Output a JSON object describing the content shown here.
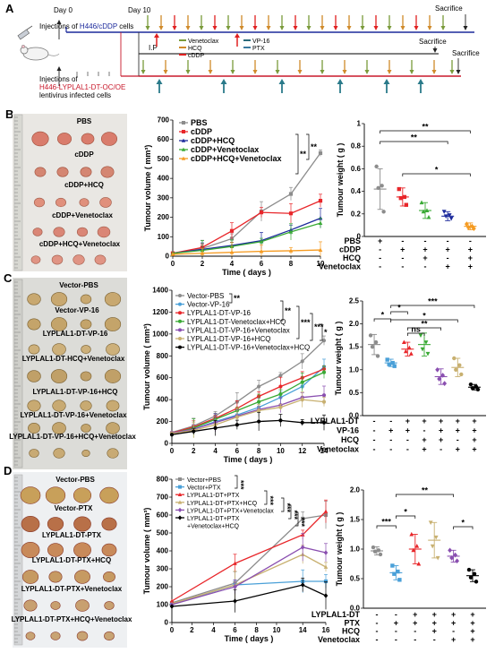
{
  "panels": {
    "A": "A",
    "B": "B",
    "C": "C",
    "D": "D"
  },
  "schematic": {
    "day0": "Day 0",
    "day10": "Day 10",
    "injection1_prefix": "Injections of ",
    "injection1_cells": "H446/cDDP",
    "injection1_suffix": " cells",
    "injection2_l1": "Injections of",
    "injection2_l2": "H446-LYPLAL1-DT-OC/OE",
    "injection2_l3": "lentivirus infected cells",
    "ip": "I.P",
    "sacrifice": "Sacrifice",
    "legend": [
      {
        "label": "Venetoclax",
        "color": "#7a9a3a"
      },
      {
        "label": "HCQ",
        "color": "#d08a2a"
      },
      {
        "label": "cDDP",
        "color": "#e02020"
      },
      {
        "label": "VP-16",
        "color": "#2a6a7a"
      },
      {
        "label": "PTX",
        "color": "#3a7aa0"
      }
    ]
  },
  "photos": {
    "B": {
      "labels": [
        "PBS",
        "cDDP",
        "cDDP+HCQ",
        "cDDP+Venetoclax",
        "cDDP+HCQ+Venetoclax"
      ]
    },
    "C": {
      "labels": [
        "Vector-PBS",
        "Vector-VP-16",
        "LYPLAL1-DT-VP-16",
        "LYPLAL1-DT-HCQ+Venetoclax",
        "LYPLAL1-DT-VP-16+HCQ",
        "LYPLAL1-DT-VP-16+Venetoclax",
        "LYPLAL1-DT-VP-16+HCQ+Venetoclax"
      ]
    },
    "D": {
      "labels": [
        "Vector-PBS",
        "Vector-PTX",
        "LYPLAL1-DT-PTX",
        "LYPLAL1-DT-PTX+HCQ",
        "LYPLAL1-DT-PTX+Venetoclax",
        "LYPLAL1-DT-PTX+HCQ+Venetoclax"
      ]
    }
  },
  "chart_data": [
    {
      "id": "B-volume",
      "type": "line",
      "xlabel": "Time ( days )",
      "ylabel": "Tumour volume ( mm³)",
      "xlim": [
        0,
        10
      ],
      "ylim": [
        0,
        700
      ],
      "xticks": [
        0,
        2,
        4,
        6,
        8,
        10
      ],
      "yticks": [
        0,
        100,
        200,
        300,
        400,
        500,
        600,
        700
      ],
      "legend_position": "top-left",
      "series": [
        {
          "name": "PBS",
          "color": "#8c8c8c",
          "marker": "square",
          "x": [
            0,
            2,
            4,
            6,
            8,
            10
          ],
          "y": [
            15,
            40,
            90,
            230,
            320,
            530
          ]
        },
        {
          "name": "cDDP",
          "color": "#e8262a",
          "marker": "square",
          "x": [
            0,
            2,
            4,
            6,
            8,
            10
          ],
          "y": [
            15,
            45,
            130,
            225,
            220,
            285
          ]
        },
        {
          "name": "cDDP+HCQ",
          "color": "#1c2a9c",
          "marker": "triangle",
          "x": [
            0,
            2,
            4,
            6,
            8,
            10
          ],
          "y": [
            15,
            35,
            55,
            80,
            135,
            195
          ]
        },
        {
          "name": "cDDP+Venetoclax",
          "color": "#3aaa35",
          "marker": "triangle",
          "x": [
            0,
            2,
            4,
            6,
            8,
            10
          ],
          "y": [
            15,
            30,
            50,
            75,
            125,
            170
          ]
        },
        {
          "name": "cDDP+HCQ+Venetoclax",
          "color": "#f59b22",
          "marker": "triangle",
          "x": [
            0,
            2,
            4,
            6,
            8,
            10
          ],
          "y": [
            10,
            15,
            20,
            25,
            28,
            32
          ]
        }
      ],
      "significance": [
        "**",
        "**"
      ]
    },
    {
      "id": "B-weight",
      "type": "scatter",
      "ylabel": "Tumour weight ( g )",
      "ylim": [
        0,
        1.0
      ],
      "yticks": [
        0,
        0.2,
        0.4,
        0.6,
        0.8,
        1.0
      ],
      "groups": [
        {
          "color": "#8c8c8c",
          "marker": "circle",
          "mean": 0.42,
          "sd": 0.18,
          "points": [
            0.62,
            0.45,
            0.43,
            0.22
          ]
        },
        {
          "color": "#e8262a",
          "marker": "square",
          "mean": 0.35,
          "sd": 0.08,
          "points": [
            0.42,
            0.35,
            0.34,
            0.28
          ]
        },
        {
          "color": "#3aaa35",
          "marker": "triangle",
          "mean": 0.23,
          "sd": 0.07,
          "points": [
            0.3,
            0.23,
            0.22,
            0.17
          ]
        },
        {
          "color": "#1c2a9c",
          "marker": "triangle-down",
          "mean": 0.18,
          "sd": 0.04,
          "points": [
            0.22,
            0.19,
            0.18,
            0.16
          ]
        },
        {
          "color": "#f59b22",
          "marker": "diamond",
          "mean": 0.09,
          "sd": 0.03,
          "points": [
            0.11,
            0.09,
            0.08,
            0.07
          ]
        }
      ],
      "significance": [
        "**",
        "**",
        "*"
      ],
      "table": [
        {
          "label": "PBS",
          "values": [
            "+",
            "-",
            "-",
            "-",
            "-"
          ]
        },
        {
          "label": "cDDP",
          "values": [
            "-",
            "+",
            "+",
            "+",
            "+"
          ]
        },
        {
          "label": "HCQ",
          "values": [
            "-",
            "-",
            "+",
            "-",
            "+"
          ]
        },
        {
          "label": "Venetoclax",
          "values": [
            "-",
            "-",
            "-",
            "+",
            "+"
          ]
        }
      ]
    },
    {
      "id": "C-volume",
      "type": "line",
      "xlabel": "Time ( days )",
      "ylabel": "Tumour volume ( mm³)",
      "xlim": [
        0,
        14
      ],
      "ylim": [
        0,
        1400
      ],
      "xticks": [
        0,
        2,
        4,
        6,
        8,
        10,
        12,
        14
      ],
      "yticks": [
        0,
        200,
        400,
        600,
        800,
        1000,
        1200,
        1400
      ],
      "legend_position": "top-left",
      "series": [
        {
          "name": "Vector-PBS",
          "color": "#8c8c8c",
          "marker": "circle",
          "x": [
            0,
            2,
            4,
            6,
            8,
            10,
            12,
            14
          ],
          "y": [
            100,
            160,
            250,
            380,
            520,
            620,
            750,
            940
          ]
        },
        {
          "name": "Vector-VP-16",
          "color": "#4aa0d8",
          "marker": "circle",
          "x": [
            0,
            2,
            4,
            6,
            8,
            10,
            12,
            14
          ],
          "y": [
            90,
            130,
            200,
            260,
            330,
            420,
            520,
            700
          ]
        },
        {
          "name": "LYPLAL1-DT-VP-16",
          "color": "#e8262a",
          "marker": "circle",
          "x": [
            0,
            2,
            4,
            6,
            8,
            10,
            12,
            14
          ],
          "y": [
            95,
            150,
            230,
            320,
            430,
            520,
            600,
            680
          ]
        },
        {
          "name": "LYPLAL1-DT-Venetoclax+HCQ",
          "color": "#3aaa35",
          "marker": "circle",
          "x": [
            0,
            2,
            4,
            6,
            8,
            10,
            12,
            14
          ],
          "y": [
            90,
            140,
            220,
            300,
            380,
            450,
            560,
            650
          ]
        },
        {
          "name": "LYPLAL1-DT-VP-16+Venetoclax",
          "color": "#8a4fb0",
          "marker": "circle",
          "x": [
            0,
            2,
            4,
            6,
            8,
            10,
            12,
            14
          ],
          "y": [
            95,
            130,
            190,
            250,
            310,
            350,
            420,
            440
          ]
        },
        {
          "name": "LYPLAL1-DT-VP-16+HCQ",
          "color": "#c8b070",
          "marker": "circle",
          "x": [
            0,
            2,
            4,
            6,
            8,
            10,
            12,
            14
          ],
          "y": [
            90,
            120,
            170,
            240,
            300,
            330,
            400,
            380
          ]
        },
        {
          "name": "LYPLAL1-DT-VP-16+Venetoclax+HCQ",
          "color": "#000000",
          "marker": "circle",
          "x": [
            0,
            2,
            4,
            6,
            8,
            10,
            12,
            14
          ],
          "y": [
            80,
            110,
            140,
            170,
            200,
            210,
            190,
            190
          ]
        }
      ],
      "significance": [
        "**",
        "**",
        "***",
        "***",
        "*"
      ]
    },
    {
      "id": "C-weight",
      "type": "scatter",
      "ylabel": "Tumour weight ( g )",
      "ylim": [
        0,
        2.5
      ],
      "yticks": [
        0,
        0.5,
        1.0,
        1.5,
        2.0,
        2.5
      ],
      "groups": [
        {
          "color": "#8c8c8c",
          "marker": "circle",
          "mean": 1.55,
          "sd": 0.22,
          "points": [
            1.75,
            1.6,
            1.5,
            1.3
          ]
        },
        {
          "color": "#4aa0d8",
          "marker": "square",
          "mean": 1.15,
          "sd": 0.08,
          "points": [
            1.22,
            1.15,
            1.12,
            1.08
          ]
        },
        {
          "color": "#e8262a",
          "marker": "triangle",
          "mean": 1.45,
          "sd": 0.15,
          "points": [
            1.6,
            1.48,
            1.4,
            1.35
          ]
        },
        {
          "color": "#3aaa35",
          "marker": "triangle-down",
          "mean": 1.55,
          "sd": 0.25,
          "points": [
            1.75,
            1.6,
            1.45,
            1.35
          ]
        },
        {
          "color": "#8a4fb0",
          "marker": "diamond",
          "mean": 0.85,
          "sd": 0.17,
          "points": [
            1.0,
            0.88,
            0.8,
            0.7
          ]
        },
        {
          "color": "#c8b070",
          "marker": "circle",
          "mean": 1.05,
          "sd": 0.2,
          "points": [
            1.25,
            1.1,
            1.0,
            0.9
          ]
        },
        {
          "color": "#000000",
          "marker": "hexagon",
          "mean": 0.62,
          "sd": 0.06,
          "points": [
            0.68,
            0.63,
            0.6,
            0.57
          ]
        }
      ],
      "significance": [
        "*",
        "*",
        "ns",
        "**",
        "*",
        "***"
      ],
      "table": [
        {
          "label": "LYPLAL1-DT",
          "values": [
            "-",
            "-",
            "+",
            "+",
            "+",
            "+",
            "+"
          ]
        },
        {
          "label": "VP-16",
          "values": [
            "-",
            "+",
            "+",
            "-",
            "+",
            "+",
            "+"
          ]
        },
        {
          "label": "HCQ",
          "values": [
            "-",
            "-",
            "-",
            "+",
            "+",
            "-",
            "+"
          ]
        },
        {
          "label": "Venetoclax",
          "values": [
            "-",
            "-",
            "-",
            "+",
            "-",
            "+",
            "+"
          ]
        }
      ]
    },
    {
      "id": "D-volume",
      "type": "line",
      "xlabel": "Time ( days )",
      "ylabel": "Tumour volume ( mm³)",
      "xlim": [
        0,
        16
      ],
      "ylim": [
        0,
        800
      ],
      "xticks": [
        0,
        2,
        4,
        6,
        8,
        10,
        14,
        16
      ],
      "yticks": [
        0,
        100,
        200,
        300,
        400,
        500,
        600,
        700,
        800
      ],
      "legend_position": "top-left",
      "series": [
        {
          "name": "Vector+PBS",
          "color": "#8c8c8c",
          "marker": "square",
          "x": [
            0,
            6,
            14,
            16
          ],
          "y": [
            110,
            220,
            580,
            600
          ]
        },
        {
          "name": "Vector+PTX",
          "color": "#4aa0d8",
          "marker": "square",
          "x": [
            0,
            6,
            14,
            16
          ],
          "y": [
            100,
            210,
            230,
            230
          ]
        },
        {
          "name": "LYPLAL1-DT+PTX",
          "color": "#e8262a",
          "marker": "triangle",
          "x": [
            0,
            6,
            14,
            16
          ],
          "y": [
            120,
            330,
            490,
            620
          ]
        },
        {
          "name": "LYPLAL1-DT+PTX+HCQ",
          "color": "#c8b070",
          "marker": "triangle",
          "x": [
            0,
            6,
            14,
            16
          ],
          "y": [
            105,
            210,
            380,
            310
          ]
        },
        {
          "name": "LYPLAL1-DT+PTX+Venetoclax",
          "color": "#8a4fb0",
          "marker": "diamond",
          "x": [
            0,
            6,
            14,
            16
          ],
          "y": [
            100,
            200,
            420,
            390
          ]
        },
        {
          "name": "LYPLAL1-DT+PTX +Venetoclax+HCQ",
          "color": "#000000",
          "marker": "diamond",
          "x": [
            0,
            6,
            14,
            16
          ],
          "y": [
            90,
            120,
            210,
            150
          ]
        }
      ],
      "significance": [
        "***",
        "***",
        "***",
        "***",
        "***"
      ]
    },
    {
      "id": "D-weight",
      "type": "scatter",
      "ylabel": "Tumour weight ( g )",
      "ylim": [
        0,
        2.0
      ],
      "yticks": [
        0,
        0.5,
        1.0,
        1.5,
        2.0
      ],
      "groups": [
        {
          "color": "#8c8c8c",
          "marker": "circle",
          "mean": 0.97,
          "sd": 0.07,
          "points": [
            1.03,
            0.98,
            0.96,
            0.91
          ]
        },
        {
          "color": "#4aa0d8",
          "marker": "square",
          "mean": 0.6,
          "sd": 0.12,
          "points": [
            0.72,
            0.62,
            0.58,
            0.48
          ]
        },
        {
          "color": "#e8262a",
          "marker": "triangle",
          "mean": 1.0,
          "sd": 0.25,
          "points": [
            1.25,
            1.05,
            0.98,
            0.75
          ]
        },
        {
          "color": "#c8b070",
          "marker": "triangle-down",
          "mean": 1.15,
          "sd": 0.3,
          "points": [
            1.45,
            1.2,
            1.05,
            0.85
          ]
        },
        {
          "color": "#8a4fb0",
          "marker": "diamond",
          "mean": 0.88,
          "sd": 0.1,
          "points": [
            0.98,
            0.9,
            0.85,
            0.8
          ]
        },
        {
          "color": "#000000",
          "marker": "circle",
          "mean": 0.55,
          "sd": 0.1,
          "points": [
            0.65,
            0.58,
            0.52,
            0.45
          ]
        }
      ],
      "significance": [
        "***",
        "*",
        "**",
        "*"
      ],
      "table": [
        {
          "label": "LYPLAL1-DT",
          "values": [
            "-",
            "-",
            "+",
            "+",
            "+",
            "+"
          ]
        },
        {
          "label": "PTX",
          "values": [
            "-",
            "+",
            "+",
            "+",
            "+",
            "+"
          ]
        },
        {
          "label": "HCQ",
          "values": [
            "-",
            "-",
            "-",
            "+",
            "-",
            "+"
          ]
        },
        {
          "label": "Venetoclax",
          "values": [
            "-",
            "-",
            "-",
            "-",
            "+",
            "+"
          ]
        }
      ]
    }
  ]
}
